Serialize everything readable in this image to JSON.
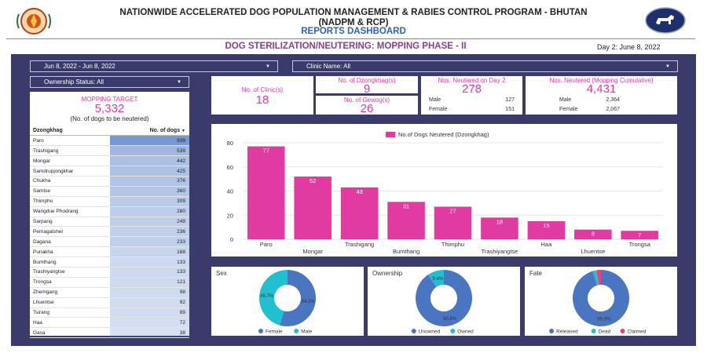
{
  "header": {
    "title_line1": "NATIONWIDE ACCELERATED DOG POPULATION MANAGEMENT & RABIES CONTROL PROGRAM - BHUTAN",
    "title_line2": "(NADPM & RCP)",
    "reports_title": "REPORTS DASHBOARD",
    "phase_title": "DOG STERILIZATION/NEUTERING: MOPPING PHASE - II",
    "day_label": "Day 2: June 8, 2022",
    "left_logo": "emblem-icon",
    "right_logo": "dog-logo-icon"
  },
  "filters": {
    "date_range": "Jun 8, 2022 - Jun 8, 2022",
    "clinic": "Clinic Name: All",
    "ownership": "Ownership Status: All"
  },
  "mopping_target": {
    "label": "MOPPING TARGET",
    "value": "5,332",
    "sub": "(No. of dogs to be neutered)"
  },
  "kpis": {
    "clinics_label": "No. of Clinic(s)",
    "clinics_value": "18",
    "dzongkhag_label": "No. of Dzongkhag(s)",
    "dzongkhag_value": "9",
    "gewog_label": "No. of Gewog(s)",
    "gewog_value": "26",
    "day2_label": "Nos. Neutered on Day 2",
    "day2_value": "278",
    "day2_male_label": "Male",
    "day2_male_value": "127",
    "day2_female_label": "Female",
    "day2_female_value": "151",
    "cum_label": "Nos. Neutered (Mopping Cumulative)",
    "cum_value": "4,431",
    "cum_male_label": "Male",
    "cum_male_value": "2,364",
    "cum_female_label": "Female",
    "cum_female_value": "2,067"
  },
  "dzongkhag_table": {
    "col1": "Dzongkhag",
    "col2": "No. of dogs",
    "sort_icon": "sort-down-icon",
    "max": 939,
    "rows": [
      {
        "name": "Paro",
        "value": "939",
        "n": 939
      },
      {
        "name": "Trashigang",
        "value": "539",
        "n": 539
      },
      {
        "name": "Mongar",
        "value": "442",
        "n": 442
      },
      {
        "name": "Samdrupjongkhar",
        "value": "425",
        "n": 425
      },
      {
        "name": "Chukha",
        "value": "376",
        "n": 376
      },
      {
        "name": "Samtse",
        "value": "360",
        "n": 360
      },
      {
        "name": "Thimphu",
        "value": "309",
        "n": 309
      },
      {
        "name": "Wangdue Phodrang",
        "value": "280",
        "n": 280
      },
      {
        "name": "Sarpang",
        "value": "249",
        "n": 249
      },
      {
        "name": "Pemagatshel",
        "value": "236",
        "n": 236
      },
      {
        "name": "Dagana",
        "value": "233",
        "n": 233
      },
      {
        "name": "Punakha",
        "value": "168",
        "n": 168
      },
      {
        "name": "Bumthang",
        "value": "133",
        "n": 133
      },
      {
        "name": "Trashiyangtse",
        "value": "133",
        "n": 133
      },
      {
        "name": "Trongsa",
        "value": "121",
        "n": 121
      },
      {
        "name": "Zhemgang",
        "value": "98",
        "n": 98
      },
      {
        "name": "Lhuentse",
        "value": "92",
        "n": 92
      },
      {
        "name": "Tsirang",
        "value": "89",
        "n": 89
      },
      {
        "name": "Haa",
        "value": "72",
        "n": 72
      },
      {
        "name": "Gasa",
        "value": "38",
        "n": 38
      }
    ]
  },
  "colors": {
    "accent": "#e13aa0",
    "panel": "#3a3b6a",
    "blue": "#4a75c1",
    "teal": "#22bfd0",
    "red": "#e8407a",
    "table_bar": "#7d9ad6"
  },
  "chart_data": [
    {
      "type": "bar",
      "legend": "No.of Dogs Neutered (Dzongkhag)",
      "legend_position": "top",
      "categories": [
        "Paro",
        "Mongar",
        "Trashigang",
        "Bumthang",
        "Thimphu",
        "Trashiyangtse",
        "Haa",
        "Lhuentse",
        "Trongsa"
      ],
      "values": [
        77,
        52,
        43,
        31,
        27,
        18,
        15,
        8,
        7
      ],
      "ylim": [
        0,
        80
      ],
      "yticks": [
        "0",
        "20",
        "40",
        "60",
        "80"
      ],
      "grid": true,
      "color": "#e13aa0"
    },
    {
      "type": "pie",
      "title": "Sex",
      "labels": [
        "Female",
        "Male"
      ],
      "values": [
        54.3,
        45.7
      ],
      "value_labels": [
        "54.3%",
        "45.7%"
      ],
      "colors": [
        "#4a75c1",
        "#22bfd0"
      ]
    },
    {
      "type": "pie",
      "title": "Ownership",
      "labels": [
        "Unowned",
        "Owned"
      ],
      "values": [
        90.6,
        9.4
      ],
      "value_labels": [
        "90.6%",
        "9.4%"
      ],
      "colors": [
        "#4a75c1",
        "#22bfd0"
      ]
    },
    {
      "type": "pie",
      "title": "Fate",
      "labels": [
        "Released",
        "Dead",
        "Claimed"
      ],
      "values": [
        95.3,
        2.2,
        2.5
      ],
      "value_labels": [
        "95.3%",
        "",
        ""
      ],
      "colors": [
        "#4a75c1",
        "#22bfd0",
        "#e8407a"
      ]
    }
  ]
}
